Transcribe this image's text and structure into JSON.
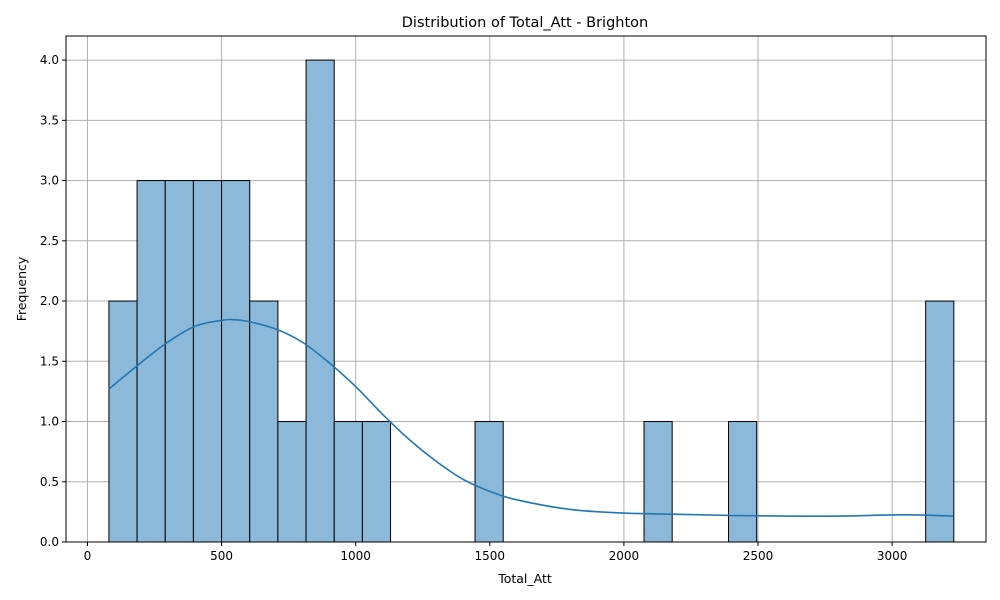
{
  "chart_data": {
    "type": "bar",
    "title": "Distribution of Total_Att - Brighton",
    "xlabel": "Total_Att",
    "ylabel": "Frequency",
    "xlim": [
      -80,
      3350
    ],
    "ylim": [
      0,
      4.2
    ],
    "x_ticks": [
      0,
      500,
      1000,
      1500,
      2000,
      2500,
      3000
    ],
    "y_ticks": [
      0.0,
      0.5,
      1.0,
      1.5,
      2.0,
      2.5,
      3.0,
      3.5,
      4.0
    ],
    "grid": true,
    "bin_start": 80,
    "bin_width": 105,
    "bins": [
      {
        "x0": 80,
        "x1": 185,
        "count": 2
      },
      {
        "x0": 185,
        "x1": 290,
        "count": 3
      },
      {
        "x0": 290,
        "x1": 395,
        "count": 3
      },
      {
        "x0": 395,
        "x1": 500,
        "count": 3
      },
      {
        "x0": 500,
        "x1": 605,
        "count": 3
      },
      {
        "x0": 605,
        "x1": 710,
        "count": 2
      },
      {
        "x0": 710,
        "x1": 815,
        "count": 1
      },
      {
        "x0": 815,
        "x1": 920,
        "count": 4
      },
      {
        "x0": 920,
        "x1": 1025,
        "count": 1
      },
      {
        "x0": 1025,
        "x1": 1130,
        "count": 1
      },
      {
        "x0": 1445,
        "x1": 1550,
        "count": 1
      },
      {
        "x0": 2075,
        "x1": 2180,
        "count": 1
      },
      {
        "x0": 2390,
        "x1": 2495,
        "count": 1
      },
      {
        "x0": 3125,
        "x1": 3230,
        "count": 2
      }
    ],
    "kde": {
      "x": [
        80,
        200,
        300,
        400,
        500,
        550,
        600,
        700,
        800,
        900,
        1000,
        1100,
        1200,
        1300,
        1400,
        1500,
        1600,
        1800,
        2000,
        2200,
        2400,
        2600,
        2800,
        3000,
        3100,
        3230
      ],
      "y": [
        1.27,
        1.49,
        1.66,
        1.79,
        1.84,
        1.845,
        1.83,
        1.77,
        1.66,
        1.49,
        1.29,
        1.06,
        0.85,
        0.67,
        0.52,
        0.42,
        0.35,
        0.27,
        0.24,
        0.23,
        0.22,
        0.215,
        0.215,
        0.225,
        0.225,
        0.215
      ]
    },
    "colors": {
      "bar_fill": "#8cb8da",
      "bar_edge": "#000000",
      "kde_line": "#1f77b4",
      "grid": "#b0b0b0"
    }
  }
}
